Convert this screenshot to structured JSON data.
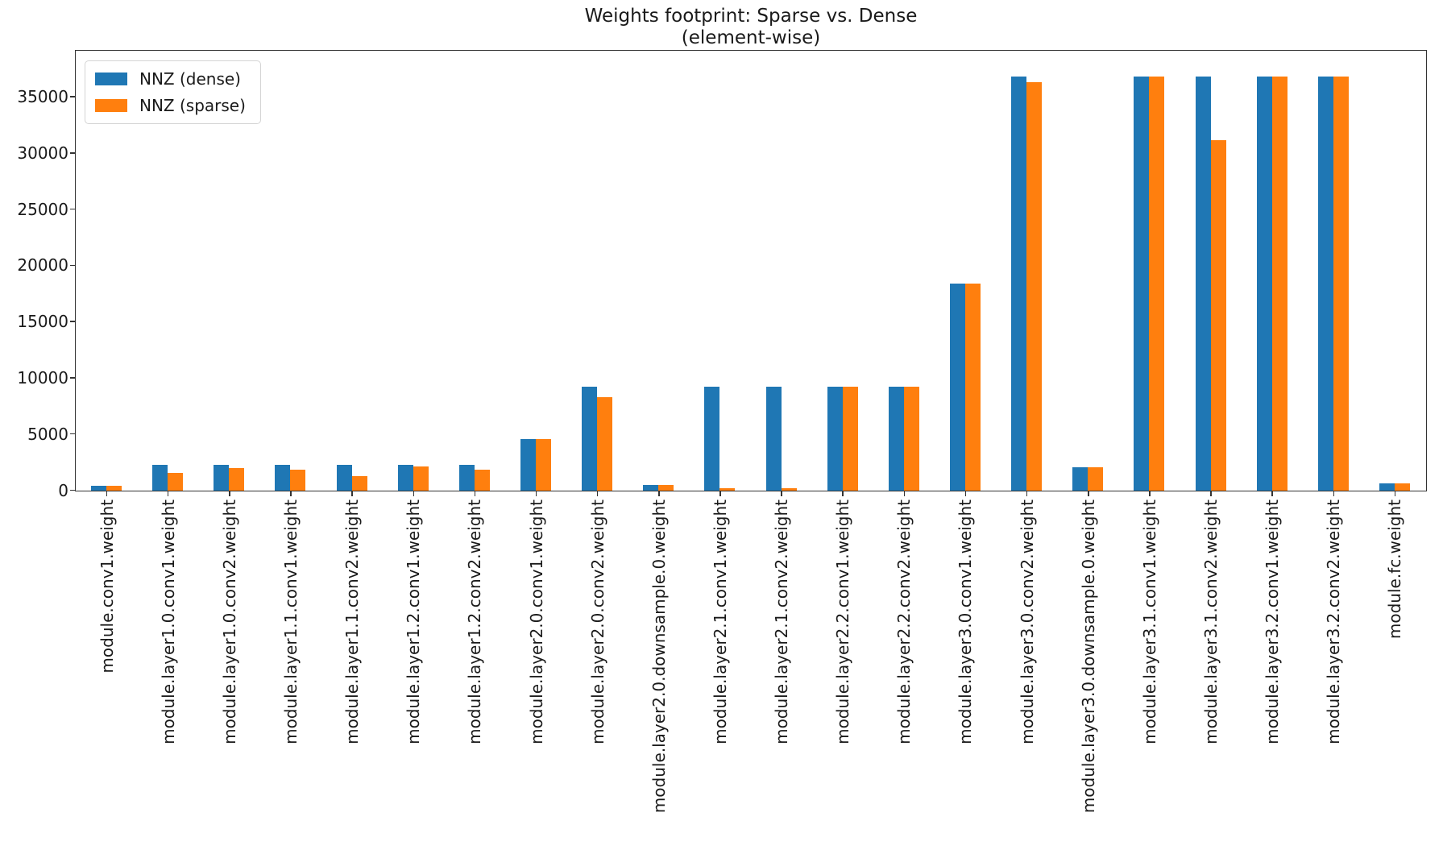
{
  "title": {
    "line1": "Weights footprint: Sparse vs. Dense",
    "line2": "(element-wise)"
  },
  "chart_data": {
    "type": "bar",
    "title": "Weights footprint: Sparse vs. Dense\n(element-wise)",
    "xlabel": "",
    "ylabel": "",
    "grid": false,
    "legend_position": "upper left",
    "ylim": [
      0,
      39060
    ],
    "yticks": [
      0,
      5000,
      10000,
      15000,
      20000,
      25000,
      30000,
      35000
    ],
    "categories": [
      "module.conv1.weight",
      "module.layer1.0.conv1.weight",
      "module.layer1.0.conv2.weight",
      "module.layer1.1.conv1.weight",
      "module.layer1.1.conv2.weight",
      "module.layer1.2.conv1.weight",
      "module.layer1.2.conv2.weight",
      "module.layer2.0.conv1.weight",
      "module.layer2.0.conv2.weight",
      "module.layer2.0.downsample.0.weight",
      "module.layer2.1.conv1.weight",
      "module.layer2.1.conv2.weight",
      "module.layer2.2.conv1.weight",
      "module.layer2.2.conv2.weight",
      "module.layer3.0.conv1.weight",
      "module.layer3.0.conv2.weight",
      "module.layer3.0.downsample.0.weight",
      "module.layer3.1.conv1.weight",
      "module.layer3.1.conv2.weight",
      "module.layer3.2.conv1.weight",
      "module.layer3.2.conv2.weight",
      "module.fc.weight"
    ],
    "series": [
      {
        "name": "NNZ (dense)",
        "color": "#1f77b4",
        "values": [
          432,
          2304,
          2304,
          2304,
          2304,
          2304,
          2304,
          4608,
          9216,
          512,
          9216,
          9216,
          9216,
          9216,
          18432,
          36864,
          2048,
          36864,
          36864,
          36864,
          36864,
          640
        ]
      },
      {
        "name": "NNZ (sparse)",
        "color": "#ff7f0e",
        "values": [
          432,
          1550,
          2000,
          1850,
          1280,
          2150,
          1840,
          4608,
          8300,
          512,
          230,
          230,
          9216,
          9216,
          18432,
          36350,
          2048,
          36864,
          31150,
          36864,
          36864,
          640
        ]
      }
    ]
  },
  "colors": {
    "axis": "#333333",
    "text": "#1a1a1a",
    "legend_border": "#d4d4d4"
  }
}
